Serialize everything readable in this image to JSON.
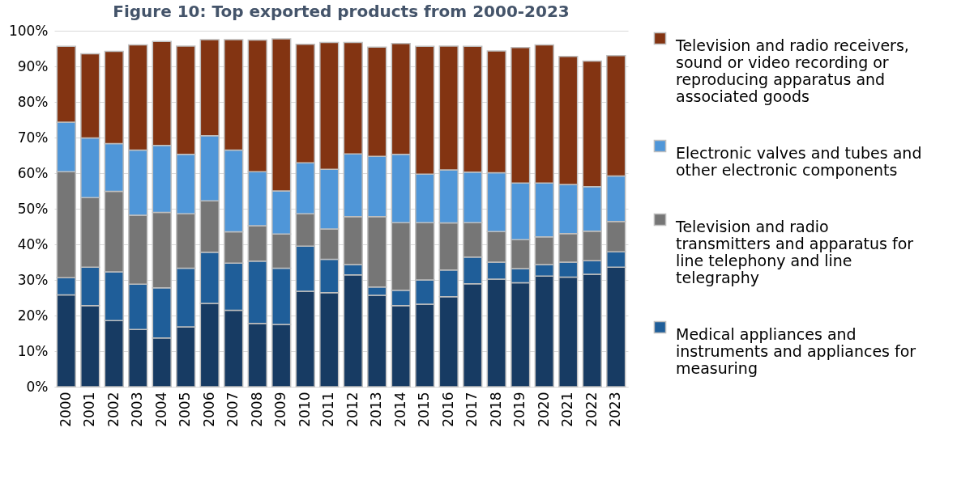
{
  "chart_data": {
    "type": "bar",
    "title": "Figure 10: Top exported products from 2000-2023",
    "stacked": true,
    "grid": "y",
    "legend": "right",
    "categories": [
      "2000",
      "2001",
      "2002",
      "2003",
      "2004",
      "2005",
      "2006",
      "2007",
      "2008",
      "2009",
      "2010",
      "2011",
      "2012",
      "2013",
      "2014",
      "2015",
      "2016",
      "2017",
      "2018",
      "2019",
      "2020",
      "2021",
      "2022",
      "2023"
    ],
    "ylim": [
      0,
      100
    ],
    "yticks": [
      {
        "value": 0,
        "label": "0%"
      },
      {
        "value": 10,
        "label": "10%"
      },
      {
        "value": 20,
        "label": "20%"
      },
      {
        "value": 30,
        "label": "30%"
      },
      {
        "value": 40,
        "label": "40%"
      },
      {
        "value": 50,
        "label": "50%"
      },
      {
        "value": 60,
        "label": "60%"
      },
      {
        "value": 70,
        "label": "70%"
      },
      {
        "value": 80,
        "label": "80%"
      },
      {
        "value": 90,
        "label": "90%"
      },
      {
        "value": 100,
        "label": "100%"
      }
    ],
    "series": [
      {
        "color": "#173b63",
        "values": [
          25.8,
          22.8,
          18.6,
          16.1,
          13.7,
          16.8,
          23.4,
          21.5,
          17.8,
          17.5,
          26.8,
          26.4,
          31.4,
          25.7,
          22.8,
          23.2,
          25.3,
          28.9,
          30.2,
          29.2,
          31.1,
          30.8,
          31.6,
          33.6
        ]
      },
      {
        "name": "Medical appliances and instruments and appliances for measuring",
        "color": "#1f5e99",
        "values": [
          4.8,
          10.8,
          13.7,
          12.7,
          14.1,
          16.5,
          14.4,
          13.2,
          17.5,
          15.8,
          12.7,
          9.4,
          2.9,
          2.3,
          4.3,
          6.8,
          7.5,
          7.5,
          4.8,
          4.0,
          3.2,
          4.2,
          3.8,
          4.3
        ]
      },
      {
        "name": "Television and radio transmitters and apparatus for line telephony and line telegraphy",
        "color": "#767676",
        "values": [
          29.8,
          19.5,
          22.6,
          19.4,
          21.2,
          15.3,
          14.4,
          8.8,
          9.9,
          9.6,
          9.1,
          8.5,
          13.5,
          19.8,
          19.0,
          16.1,
          13.2,
          9.7,
          8.6,
          8.1,
          7.8,
          8.0,
          8.3,
          8.5
        ]
      },
      {
        "name": "Electronic valves and tubes and other electronic components",
        "color": "#4f96d8",
        "values": [
          13.9,
          16.8,
          13.4,
          18.3,
          18.8,
          16.7,
          18.3,
          23.0,
          15.2,
          12.1,
          14.3,
          16.8,
          17.6,
          16.9,
          19.2,
          13.6,
          14.9,
          14.2,
          16.5,
          15.9,
          15.1,
          13.8,
          12.5,
          12.8
        ]
      },
      {
        "name": "Television and radio receivers, sound or video recording or reproducing apparatus and associated goods",
        "color": "#833412",
        "values": [
          21.3,
          23.6,
          25.9,
          29.5,
          29.2,
          30.4,
          27.0,
          31.0,
          37.0,
          42.7,
          33.3,
          35.6,
          31.3,
          30.7,
          31.1,
          35.9,
          34.8,
          35.3,
          34.2,
          38.1,
          38.8,
          36.0,
          35.3,
          33.8
        ]
      }
    ]
  }
}
